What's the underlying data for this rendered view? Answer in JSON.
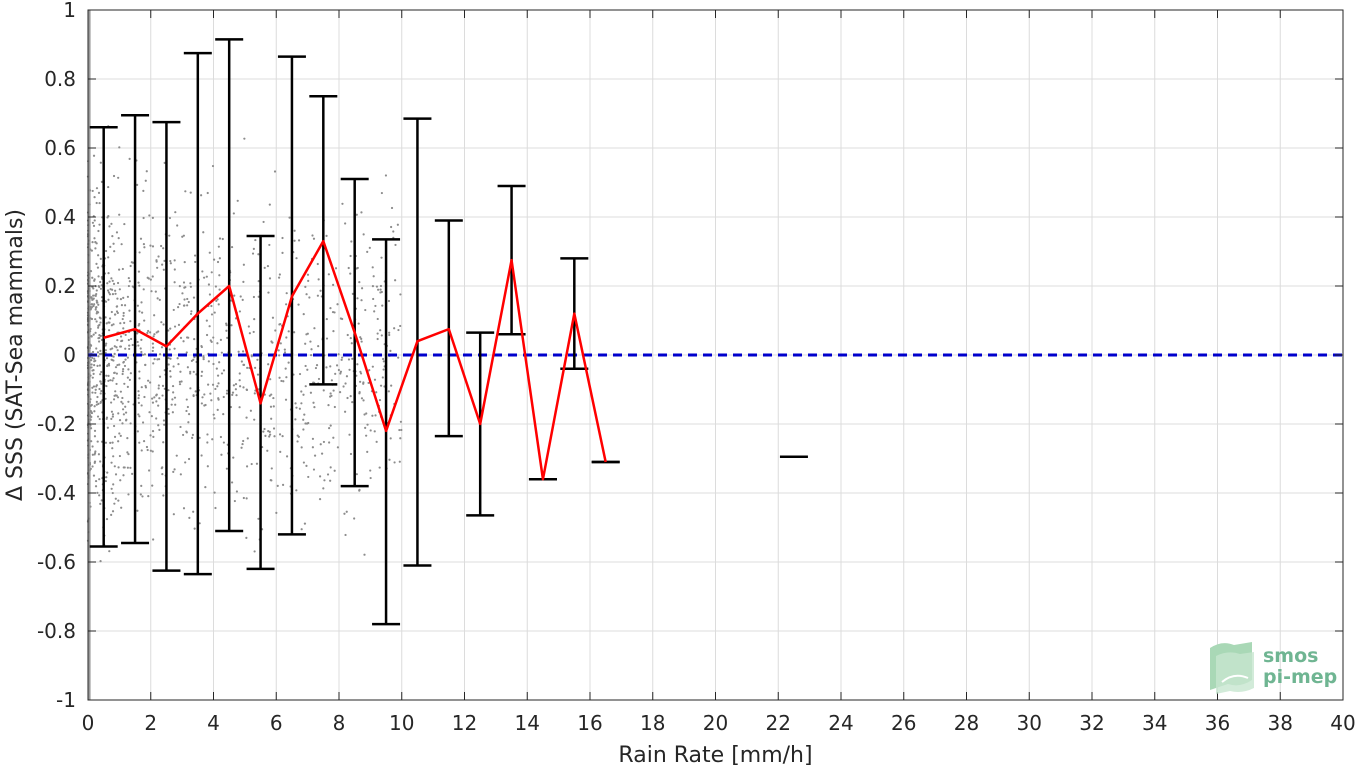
{
  "chart_data": {
    "type": "scatter",
    "xlabel": "Rain Rate [mm/h]",
    "ylabel": "Δ SSS (SAT-Sea mammals)",
    "xlim": [
      0,
      40
    ],
    "ylim": [
      -1,
      1
    ],
    "x_ticks": [
      0,
      2,
      4,
      6,
      8,
      10,
      12,
      14,
      16,
      18,
      20,
      22,
      24,
      26,
      28,
      30,
      32,
      34,
      36,
      38,
      40
    ],
    "x_tick_labels": [
      "0",
      "2",
      "4",
      "6",
      "8",
      "10",
      "12",
      "14",
      "16",
      "18",
      "20",
      "22",
      "24",
      "26",
      "28",
      "30",
      "32",
      "34",
      "36",
      "38",
      "40"
    ],
    "y_ticks": [
      -1,
      -0.8,
      -0.6,
      -0.4,
      -0.2,
      0,
      0.2,
      0.4,
      0.6,
      0.8,
      1
    ],
    "y_tick_labels": [
      "-1",
      "-0.8",
      "-0.6",
      "-0.4",
      "-0.2",
      "0",
      "0.2",
      "0.4",
      "0.6",
      "0.8",
      "1"
    ],
    "grid": true,
    "series": [
      {
        "kind": "binned_mean_with_errorbars",
        "color": "#ff0000",
        "errorbar_color": "#000000",
        "x": [
          0.5,
          1.5,
          2.5,
          3.5,
          4.5,
          5.5,
          6.5,
          7.5,
          8.5,
          9.5,
          10.5,
          11.5,
          12.5,
          13.5,
          14.5,
          15.5,
          16.5
        ],
        "mean": [
          0.05,
          0.075,
          0.025,
          0.12,
          0.2,
          -0.14,
          0.17,
          0.33,
          0.065,
          -0.22,
          0.04,
          0.075,
          -0.2,
          0.275,
          -0.36,
          0.12,
          -0.31
        ],
        "upper": [
          0.66,
          0.695,
          0.675,
          0.875,
          0.915,
          0.345,
          0.865,
          0.75,
          0.51,
          0.335,
          0.685,
          0.39,
          0.065,
          0.49,
          -0.36,
          0.28,
          -0.31
        ],
        "lower": [
          -0.555,
          -0.545,
          -0.625,
          -0.635,
          -0.51,
          -0.62,
          -0.52,
          -0.085,
          -0.38,
          -0.78,
          -0.61,
          -0.235,
          -0.465,
          0.06,
          -0.36,
          -0.04,
          -0.31
        ]
      },
      {
        "kind": "isolated_bin",
        "color": "#000000",
        "x": [
          22.5
        ],
        "mean": [
          -0.295
        ]
      },
      {
        "kind": "reference_line",
        "color": "#0000cc",
        "style": "dashed",
        "y": 0
      },
      {
        "kind": "raw_scatter",
        "color": "#8c8c8c",
        "description_density": "dense points near x=0 to 3, sparse up to ~10"
      }
    ]
  },
  "logo": {
    "line1": "smos",
    "line2": "pi-mep"
  }
}
